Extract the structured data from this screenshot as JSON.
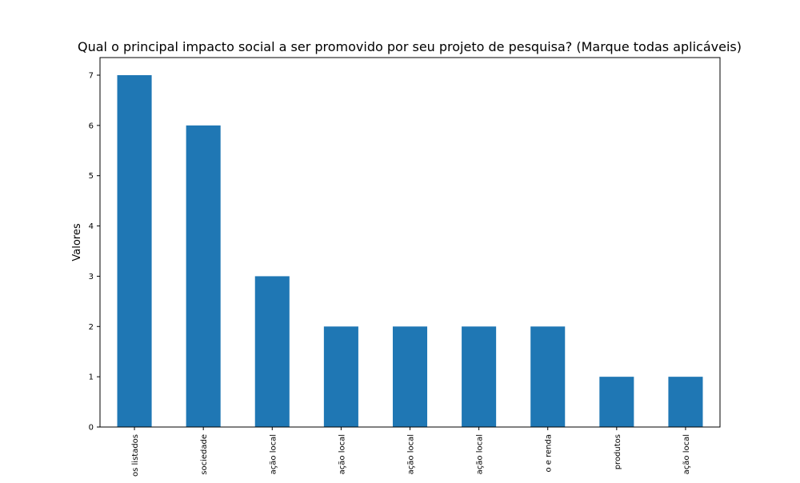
{
  "chart_data": {
    "type": "bar",
    "title": "Qual o principal impacto social a ser promovido por seu projeto de pesquisa? (Marque todas aplicáveis)",
    "xlabel": "",
    "ylabel": "Valores",
    "categories": [
      "os listados",
      "sociedade",
      "ação local",
      "ação local",
      "ação local",
      "ação local",
      "o e renda",
      "produtos",
      "ação local"
    ],
    "values": [
      7,
      6,
      3,
      2,
      2,
      2,
      2,
      1,
      1
    ],
    "ylim": [
      0,
      7.35
    ],
    "yticks": [
      0,
      1,
      2,
      3,
      4,
      5,
      6,
      7
    ],
    "bar_color": "#1f77b4",
    "grid": false,
    "legend": "none"
  }
}
